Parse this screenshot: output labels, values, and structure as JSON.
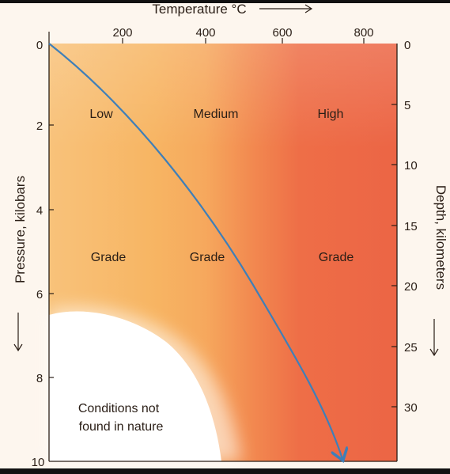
{
  "figure": {
    "temperature_label": "Temperature °C",
    "pressure_label": "Pressure, kilobars",
    "depth_label": "Depth, kilometers",
    "temperature_ticks": [
      "200",
      "400",
      "600",
      "800"
    ],
    "pressure_ticks": [
      "0",
      "2",
      "4",
      "6",
      "8",
      "10"
    ],
    "depth_ticks": [
      "0",
      "5",
      "10",
      "15",
      "20",
      "25",
      "30"
    ],
    "zones": [
      {
        "line1": "Low",
        "line2": "Grade"
      },
      {
        "line1": "Medium",
        "line2": "Grade"
      },
      {
        "line1": "High",
        "line2": "Grade"
      }
    ],
    "excluded_region": {
      "line1": "Conditions not",
      "line2": "found in nature"
    },
    "colors": {
      "low_grade": "#f7b563",
      "medium_grade": "#f59a55",
      "high_grade": "#ee6a45",
      "geotherm": "#3f7fb8",
      "excluded": "#ffffff"
    }
  }
}
